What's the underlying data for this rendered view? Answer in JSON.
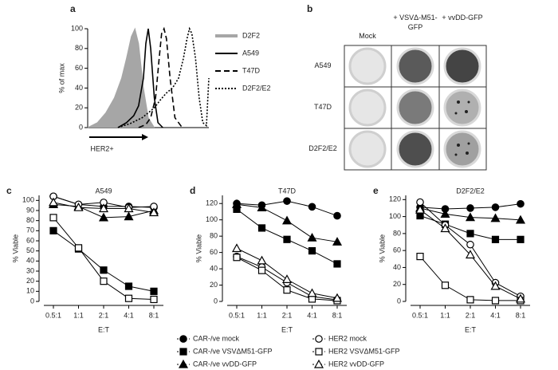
{
  "chart_data": [
    {
      "type": "line",
      "panel": "a",
      "ylabel": "% of max",
      "xlabel": "HER2+",
      "xlim": [
        0,
        100
      ],
      "ylim": [
        0,
        100
      ],
      "yticks": [
        0,
        20,
        40,
        60,
        80,
        100
      ],
      "series": [
        {
          "name": "D2F2",
          "color": "#a6a6a6",
          "fill": true,
          "dash": "solid",
          "x": [
            0,
            8,
            15,
            22,
            28,
            32,
            36,
            39,
            42,
            46,
            50,
            55
          ],
          "values": [
            0,
            5,
            15,
            30,
            50,
            70,
            92,
            100,
            85,
            40,
            10,
            0
          ]
        },
        {
          "name": "A549",
          "color": "#000000",
          "fill": false,
          "dash": "solid",
          "x": [
            25,
            32,
            38,
            42,
            46,
            48,
            50,
            52,
            55,
            58,
            62
          ],
          "values": [
            0,
            5,
            12,
            22,
            50,
            85,
            100,
            80,
            30,
            5,
            0
          ]
        },
        {
          "name": "T47D",
          "color": "#000000",
          "fill": false,
          "dash": "dashed",
          "x": [
            42,
            48,
            52,
            56,
            59,
            61,
            63,
            65,
            68,
            72,
            78
          ],
          "values": [
            0,
            3,
            10,
            30,
            70,
            95,
            100,
            90,
            50,
            10,
            0
          ]
        },
        {
          "name": "D2F2/E2",
          "color": "#000000",
          "fill": false,
          "dash": "dotted",
          "x": [
            25,
            35,
            45,
            55,
            60,
            65,
            70,
            75,
            79,
            82,
            84,
            86,
            89,
            92,
            95,
            98,
            100
          ],
          "values": [
            0,
            4,
            10,
            20,
            28,
            35,
            40,
            50,
            70,
            90,
            100,
            95,
            70,
            30,
            5,
            2,
            50
          ]
        }
      ]
    },
    {
      "type": "line",
      "panel": "c",
      "title": "A549",
      "xlabel": "E:T",
      "ylabel": "% Viable",
      "categories": [
        "0.5:1",
        "1:1",
        "2:1",
        "4:1",
        "8:1"
      ],
      "ylim": [
        0,
        105
      ],
      "yticks": [
        0,
        10,
        20,
        30,
        40,
        50,
        60,
        70,
        80,
        90,
        100
      ],
      "series": [
        {
          "name": "CAR-/ve mock",
          "color": "#000000",
          "marker": "circle",
          "filled": true,
          "values": [
            104,
            96,
            94,
            94,
            93
          ]
        },
        {
          "name": "CAR-/ve VSVΔM51-GFP",
          "color": "#000000",
          "marker": "square",
          "filled": true,
          "values": [
            70,
            52,
            31,
            15,
            10
          ]
        },
        {
          "name": "CAR-/ve vvDD-GFP",
          "color": "#000000",
          "marker": "triangle",
          "filled": true,
          "values": [
            96,
            94,
            83,
            84,
            90
          ]
        },
        {
          "name": "HER2 mock",
          "color": "#000000",
          "marker": "circle",
          "filled": false,
          "values": [
            104,
            96,
            98,
            93,
            94
          ]
        },
        {
          "name": "HER2 VSVΔM51-GFP",
          "color": "#000000",
          "marker": "square",
          "filled": false,
          "values": [
            83,
            53,
            20,
            3,
            2
          ]
        },
        {
          "name": "HER2 vvDD-GFP",
          "color": "#000000",
          "marker": "triangle",
          "filled": false,
          "values": [
            98,
            93,
            92,
            92,
            88
          ]
        }
      ]
    },
    {
      "type": "line",
      "panel": "d",
      "title": "T47D",
      "xlabel": "E:T",
      "ylabel": "% Viable",
      "categories": [
        "0.5:1",
        "1:1",
        "2:1",
        "4:1",
        "8:1"
      ],
      "ylim": [
        0,
        130
      ],
      "yticks": [
        0,
        20,
        40,
        60,
        80,
        100,
        120
      ],
      "series": [
        {
          "color": "#000000",
          "marker": "circle",
          "filled": true,
          "values": [
            120,
            118,
            123,
            116,
            105
          ]
        },
        {
          "color": "#000000",
          "marker": "square",
          "filled": true,
          "values": [
            113,
            90,
            76,
            62,
            46
          ]
        },
        {
          "color": "#000000",
          "marker": "triangle",
          "filled": true,
          "values": [
            119,
            115,
            99,
            78,
            73
          ]
        },
        {
          "color": "#000000",
          "marker": "circle",
          "filled": false,
          "values": [
            55,
            42,
            23,
            6,
            2
          ]
        },
        {
          "color": "#000000",
          "marker": "square",
          "filled": false,
          "values": [
            54,
            38,
            14,
            3,
            1
          ]
        },
        {
          "color": "#000000",
          "marker": "triangle",
          "filled": false,
          "values": [
            65,
            50,
            27,
            10,
            4
          ]
        }
      ]
    },
    {
      "type": "line",
      "panel": "e",
      "title": "D2F2/E2",
      "xlabel": "E:T",
      "ylabel": "% Viable",
      "categories": [
        "0.5:1",
        "1:1",
        "2:1",
        "4:1",
        "8:1"
      ],
      "ylim": [
        0,
        125
      ],
      "yticks": [
        0,
        20,
        40,
        60,
        80,
        100,
        120
      ],
      "series": [
        {
          "color": "#000000",
          "marker": "circle",
          "filled": true,
          "values": [
            111,
            109,
            110,
            111,
            115
          ]
        },
        {
          "color": "#000000",
          "marker": "square",
          "filled": true,
          "values": [
            101,
            91,
            80,
            73,
            73
          ]
        },
        {
          "color": "#000000",
          "marker": "triangle",
          "filled": true,
          "values": [
            110,
            103,
            99,
            98,
            96
          ]
        },
        {
          "color": "#000000",
          "marker": "circle",
          "filled": false,
          "values": [
            117,
            90,
            67,
            22,
            6
          ]
        },
        {
          "color": "#000000",
          "marker": "square",
          "filled": false,
          "values": [
            53,
            19,
            2,
            1,
            1
          ]
        },
        {
          "color": "#000000",
          "marker": "triangle",
          "filled": false,
          "values": [
            108,
            86,
            55,
            18,
            3
          ]
        }
      ]
    }
  ],
  "plate": {
    "panel": "b",
    "columns": [
      "Mock",
      "+ VSVΔ-M51-GFP",
      "+ vvDD-GFP"
    ],
    "rows": [
      "A549",
      "T47D",
      "D2F2/E2"
    ]
  }
}
